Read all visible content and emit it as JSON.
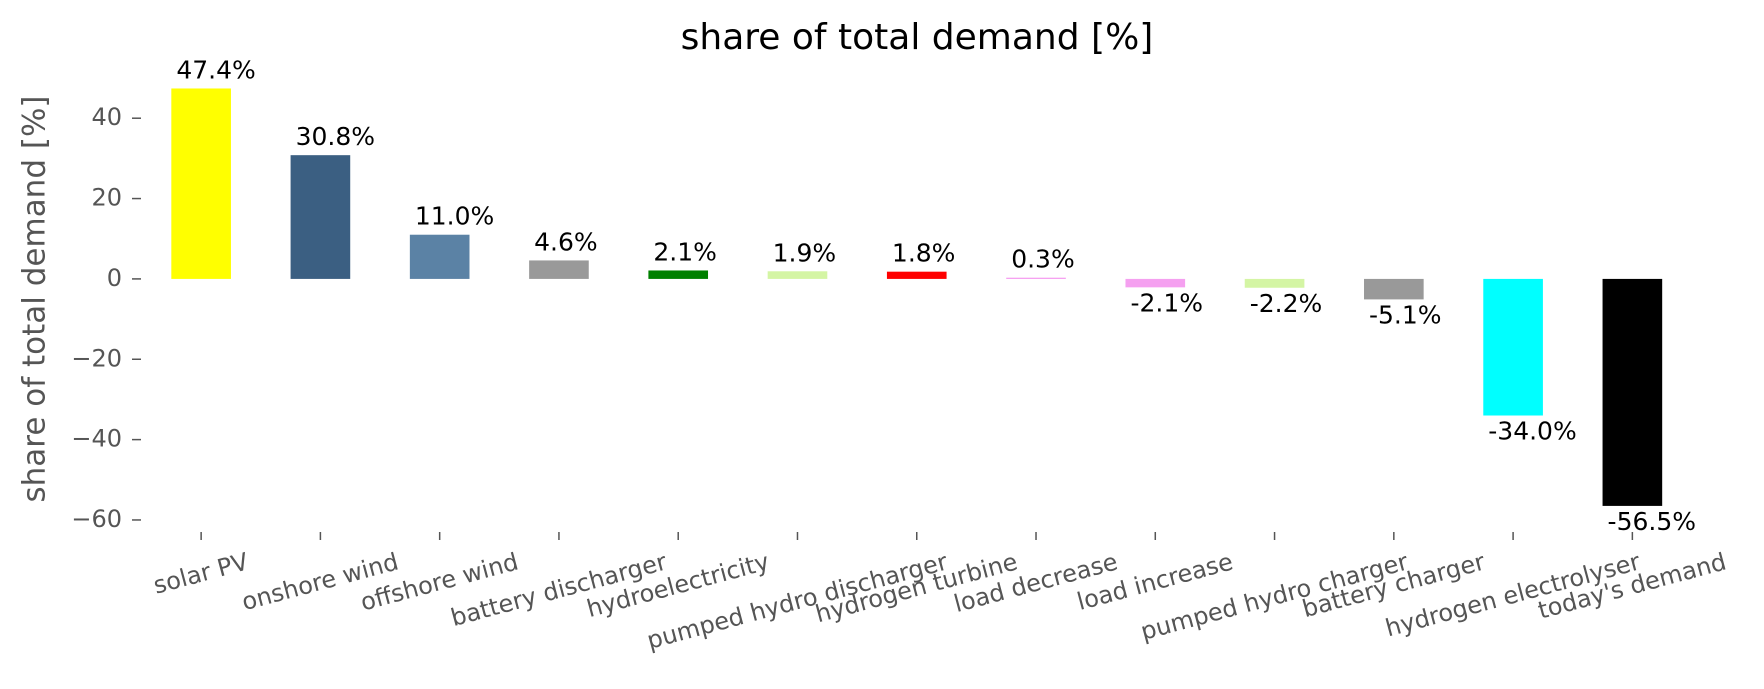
{
  "chart_data": {
    "type": "bar",
    "title": "share of total demand [%]",
    "ylabel": "share of total demand [%]",
    "categories": [
      "solar PV",
      "onshore wind",
      "offshore wind",
      "battery discharger",
      "hydroelectricity",
      "pumped hydro discharger",
      "hydrogen turbine",
      "load decrease",
      "load increase",
      "pumped hydro charger",
      "battery charger",
      "hydrogen electrolyser",
      "today's demand"
    ],
    "values": [
      47.4,
      30.8,
      11.0,
      4.6,
      2.1,
      1.9,
      1.8,
      0.3,
      -2.1,
      -2.2,
      -5.1,
      -34.0,
      -56.5
    ],
    "value_labels": [
      "47.4%",
      "30.8%",
      "11.0%",
      "4.6%",
      "2.1%",
      "1.9%",
      "1.8%",
      "0.3%",
      "-2.1%",
      "-2.2%",
      "-5.1%",
      "-34.0%",
      "-56.5%"
    ],
    "colors": [
      "#ffff00",
      "#3b5f82",
      "#5b82a5",
      "#999999",
      "#008000",
      "#d4f5a4",
      "#ff0000",
      "#f59af0",
      "#f5a0f0",
      "#d4f5a4",
      "#999999",
      "#00ffff",
      "#000000"
    ],
    "ylim": [
      -62,
      52
    ],
    "yticks": [
      {
        "value": -60,
        "label": "−60"
      },
      {
        "value": -40,
        "label": "−40"
      },
      {
        "value": -20,
        "label": "−20"
      },
      0,
      20,
      40
    ]
  }
}
